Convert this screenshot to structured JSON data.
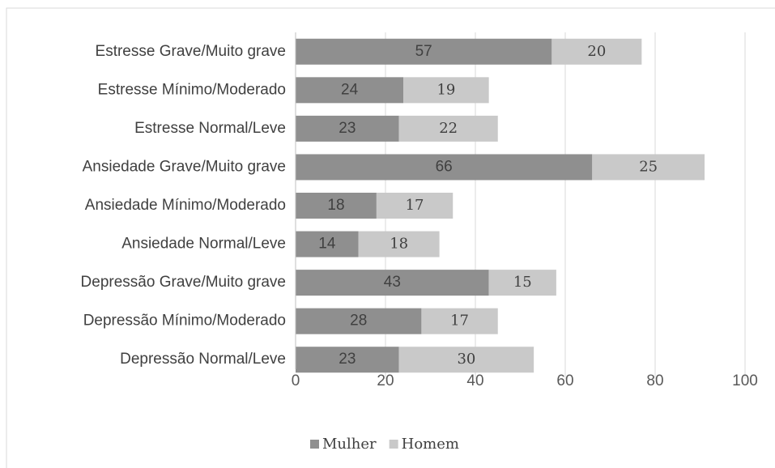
{
  "chart_data": {
    "type": "bar",
    "orientation": "horizontal",
    "stacked": true,
    "categories": [
      "Estresse Grave/Muito grave",
      "Estresse Mínimo/Moderado",
      "Estresse Normal/Leve",
      "Ansiedade Grave/Muito grave",
      "Ansiedade Mínimo/Moderado",
      "Ansiedade Normal/Leve",
      "Depressão Grave/Muito grave",
      "Depressão Mínimo/Moderado",
      "Depressão Normal/Leve"
    ],
    "series": [
      {
        "name": "Mulher",
        "color": "#8f8f8f",
        "values": [
          57,
          24,
          23,
          66,
          18,
          14,
          43,
          28,
          23
        ]
      },
      {
        "name": "Homem",
        "color": "#c9c9c9",
        "values": [
          20,
          19,
          22,
          25,
          17,
          18,
          15,
          17,
          30
        ]
      }
    ],
    "xlim": [
      0,
      100
    ],
    "xticks": [
      0,
      20,
      40,
      60,
      80,
      100
    ],
    "grid": true,
    "legend": "bottom"
  }
}
